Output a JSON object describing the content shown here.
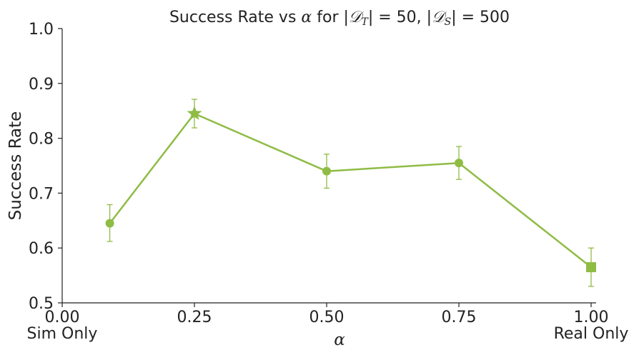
{
  "chart_data": {
    "type": "line",
    "title_parts": {
      "prefix": "Success Rate vs ",
      "alpha": "α",
      "middle": " for |",
      "dt": "𝒟",
      "dt_sub": "T",
      "eq1": "| = 50, |",
      "ds": "𝒟",
      "ds_sub": "S",
      "eq2": "| = 500"
    },
    "xlabel": "α",
    "ylabel": "Success Rate",
    "xlim": [
      0.0,
      1.04
    ],
    "ylim": [
      0.5,
      1.0
    ],
    "xticks": [
      0.0,
      0.25,
      0.5,
      0.75,
      1.0
    ],
    "xtick_labels": [
      "0.00",
      "0.25",
      "0.50",
      "0.75",
      "1.00"
    ],
    "yticks": [
      0.5,
      0.6,
      0.7,
      0.8,
      0.9,
      1.0
    ],
    "ytick_labels": [
      "0.5",
      "0.6",
      "0.7",
      "0.8",
      "0.9",
      "1.0"
    ],
    "extra_labels": [
      {
        "text": "Sim Only",
        "x": 0.0
      },
      {
        "text": "Real Only",
        "x": 1.0
      }
    ],
    "grid": false,
    "series": [
      {
        "color": "#8fbc45",
        "points": [
          {
            "x": 0.09,
            "y": 0.645,
            "err_low": 0.612,
            "err_high": 0.679,
            "marker": "circle"
          },
          {
            "x": 0.25,
            "y": 0.845,
            "err_low": 0.819,
            "err_high": 0.871,
            "marker": "star"
          },
          {
            "x": 0.5,
            "y": 0.74,
            "err_low": 0.709,
            "err_high": 0.771,
            "marker": "circle"
          },
          {
            "x": 0.75,
            "y": 0.755,
            "err_low": 0.725,
            "err_high": 0.785,
            "marker": "circle"
          },
          {
            "x": 1.0,
            "y": 0.565,
            "err_low": 0.53,
            "err_high": 0.6,
            "marker": "square"
          }
        ]
      }
    ]
  }
}
